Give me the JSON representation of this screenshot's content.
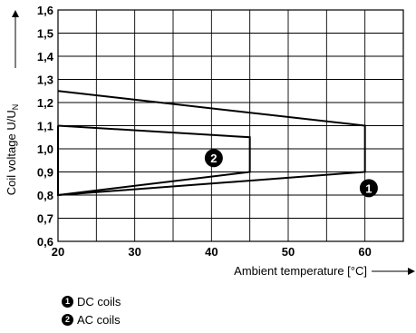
{
  "chart_data": {
    "type": "line",
    "xlabel": "Ambient temperature [°C]",
    "ylabel_main": "Coil voltage U/U",
    "ylabel_sub": "N",
    "xlim": [
      20,
      65
    ],
    "ylim": [
      0.6,
      1.6
    ],
    "x_ticks": [
      20,
      30,
      40,
      50,
      60
    ],
    "x_tick_labels": [
      "20",
      "30",
      "40",
      "50",
      "60"
    ],
    "y_ticks": [
      0.6,
      0.7,
      0.8,
      0.9,
      1.0,
      1.1,
      1.2,
      1.3,
      1.4,
      1.5,
      1.6
    ],
    "y_tick_labels": [
      "0,6",
      "0,7",
      "0,8",
      "0,9",
      "1,0",
      "1,1",
      "1,2",
      "1,3",
      "1,4",
      "1,5",
      "1,6"
    ],
    "grid": true,
    "series": [
      {
        "marker": "1",
        "marker_at": {
          "x": 60.5,
          "y": 0.83
        },
        "x": [
          20,
          60,
          60,
          20
        ],
        "y": [
          1.25,
          1.1,
          0.9,
          0.8
        ]
      },
      {
        "marker": "2",
        "marker_at": {
          "x": 40.3,
          "y": 0.96
        },
        "x": [
          20,
          45,
          45,
          20,
          20
        ],
        "y": [
          1.1,
          1.05,
          0.9,
          0.8,
          1.1
        ]
      }
    ]
  },
  "legend": [
    {
      "marker": "1",
      "label": "DC coils"
    },
    {
      "marker": "2",
      "label": "AC coils"
    }
  ]
}
